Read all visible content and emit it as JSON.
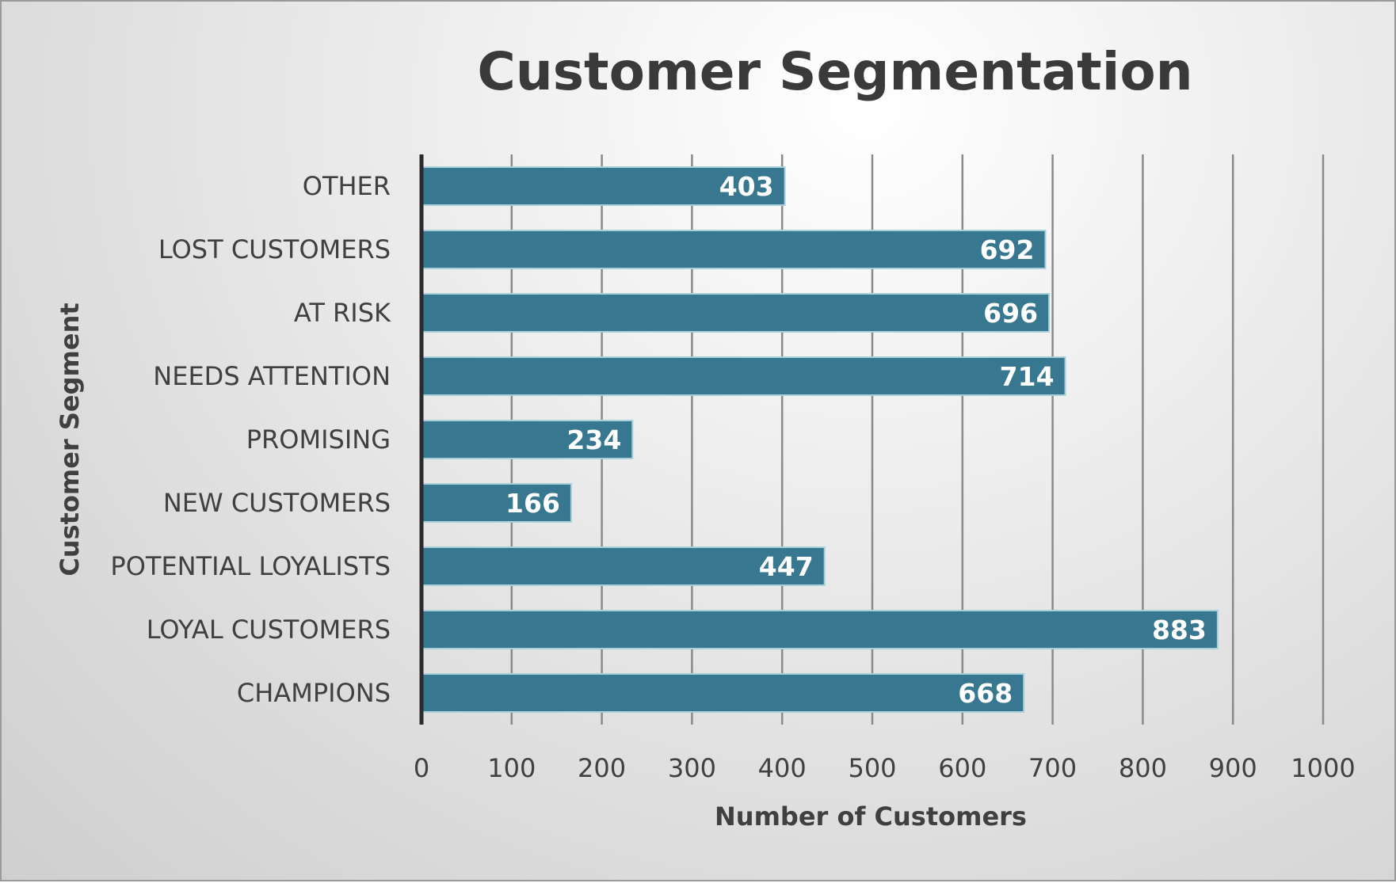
{
  "chart_data": {
    "type": "bar",
    "orientation": "horizontal",
    "title": "Customer Segmentation",
    "xlabel": "Number of Customers",
    "ylabel": "Customer  Segment",
    "categories": [
      "OTHER",
      "LOST CUSTOMERS",
      "AT RISK",
      "NEEDS ATTENTION",
      "PROMISING",
      "NEW CUSTOMERS",
      "POTENTIAL LOYALISTS",
      "LOYAL CUSTOMERS",
      "CHAMPIONS"
    ],
    "values": [
      403,
      692,
      696,
      714,
      234,
      166,
      447,
      883,
      668
    ],
    "data_labels": [
      "403",
      "692",
      "696",
      "714",
      "234",
      "166",
      "447",
      "883",
      "668"
    ],
    "xlim": [
      0,
      1000
    ],
    "xticks": [
      0,
      100,
      200,
      300,
      400,
      500,
      600,
      700,
      800,
      900,
      1000
    ],
    "xtick_labels": [
      "0",
      "100",
      "200",
      "300",
      "400",
      "500",
      "600",
      "700",
      "800",
      "900",
      "1000"
    ],
    "grid": "vertical",
    "legend": "none",
    "colors": {
      "bar": "#37778f",
      "bar_edge": "#a9cfdc",
      "grid": "#8a8a8a",
      "axis": "#2b2b2b"
    }
  }
}
